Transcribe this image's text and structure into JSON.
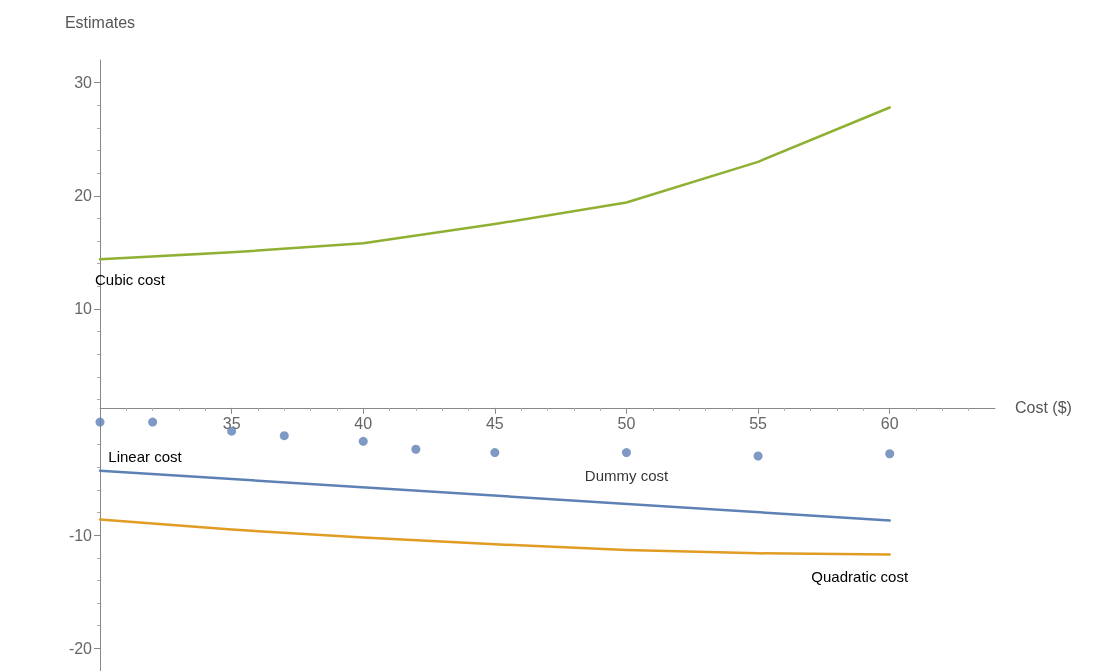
{
  "chart_data": {
    "type": "line",
    "xlabel": "Cost ($)",
    "ylabel": "Estimates",
    "xlim": [
      30,
      64
    ],
    "xticks": [
      35,
      40,
      45,
      50,
      55,
      60
    ],
    "ylim": [
      -22,
      32
    ],
    "yticks": [
      -20,
      -10,
      10,
      20,
      30
    ],
    "grid": false,
    "legend": false,
    "marker": "none",
    "line_style": "solid",
    "series": [
      {
        "name": "Cubic cost",
        "color": "#8fb032",
        "x": [
          30,
          35,
          40,
          45,
          50,
          55,
          60
        ],
        "values": [
          14.4,
          15,
          15.8,
          17.5,
          19.4,
          23,
          27.8
        ]
      },
      {
        "name": "Linear cost",
        "color": "#5e81b5",
        "x": [
          30,
          60
        ],
        "values": [
          -4.3,
          -8.7
        ]
      },
      {
        "name": "Quadratic cost",
        "color": "#e19c24",
        "x": [
          30,
          35,
          40,
          45,
          50,
          55,
          60
        ],
        "values": [
          -8.6,
          -9.5,
          -10.2,
          -10.8,
          -11.3,
          -11.6,
          -11.7
        ]
      },
      {
        "name": "Dummy cost",
        "type": "scatter",
        "marker": "circle",
        "color": "#5e81b5",
        "x": [
          30,
          32,
          35,
          37,
          40,
          42,
          45,
          50,
          55,
          60
        ],
        "values": [
          0,
          0,
          -0.8,
          -1.2,
          -1.7,
          -2.4,
          -2.7,
          -2.7,
          -3,
          -2.8
        ]
      }
    ]
  }
}
